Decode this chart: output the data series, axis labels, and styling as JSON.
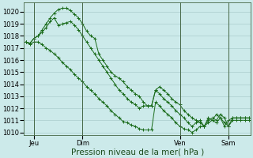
{
  "background_color": "#cceaea",
  "grid_color": "#aacccc",
  "line_color": "#1a6b1a",
  "marker_color": "#1a6b1a",
  "ylim": [
    1009.8,
    1020.8
  ],
  "yticks": [
    1010,
    1011,
    1012,
    1013,
    1014,
    1015,
    1016,
    1017,
    1018,
    1019,
    1020
  ],
  "xlabel": "Pression niveau de la mer( hPa )",
  "xlabel_fontsize": 7.5,
  "tick_fontsize": 6.0,
  "xtick_labels": [
    "Jeu",
    "Dim",
    "Ven",
    "Sam"
  ],
  "xtick_positions": [
    2,
    14,
    38,
    50
  ],
  "vlines": [
    2,
    14,
    38,
    50
  ],
  "n_points": 56,
  "series1": [
    1017.5,
    1017.4,
    1017.8,
    1018.0,
    1018.5,
    1019.0,
    1019.5,
    1019.9,
    1020.2,
    1020.3,
    1020.3,
    1020.1,
    1019.8,
    1019.5,
    1019.0,
    1018.4,
    1018.0,
    1017.8,
    1016.5,
    1016.0,
    1015.5,
    1015.0,
    1014.7,
    1014.5,
    1014.2,
    1013.8,
    1013.5,
    1013.2,
    1013.0,
    1012.5,
    1012.2,
    1012.2,
    1013.5,
    1013.8,
    1013.5,
    1013.2,
    1012.8,
    1012.5,
    1012.3,
    1011.8,
    1011.5,
    1011.2,
    1011.0,
    1010.8,
    1010.5,
    1011.2,
    1011.0,
    1011.5,
    1011.2,
    1010.5,
    1011.0,
    1011.2,
    1011.2,
    1011.2,
    1011.2,
    1011.2
  ],
  "series2": [
    1017.5,
    1017.4,
    1017.8,
    1018.0,
    1018.3,
    1018.7,
    1019.2,
    1019.5,
    1018.9,
    1019.0,
    1019.1,
    1019.2,
    1018.9,
    1018.5,
    1018.0,
    1017.5,
    1017.0,
    1016.5,
    1016.0,
    1015.5,
    1015.0,
    1014.5,
    1014.0,
    1013.5,
    1013.2,
    1012.8,
    1012.5,
    1012.3,
    1012.0,
    1012.2,
    1012.2,
    1012.2,
    1013.5,
    1013.2,
    1012.8,
    1012.5,
    1012.2,
    1011.8,
    1011.5,
    1011.2,
    1010.8,
    1010.5,
    1010.8,
    1011.0,
    1010.5,
    1011.0,
    1011.2,
    1011.0,
    1011.5,
    1011.2,
    1010.5,
    1011.2,
    1011.2,
    1011.2,
    1011.2,
    1011.2
  ],
  "series3": [
    1017.5,
    1017.3,
    1017.5,
    1017.5,
    1017.3,
    1017.0,
    1016.8,
    1016.5,
    1016.2,
    1015.8,
    1015.5,
    1015.2,
    1014.8,
    1014.5,
    1014.2,
    1013.8,
    1013.5,
    1013.2,
    1012.8,
    1012.5,
    1012.2,
    1011.8,
    1011.5,
    1011.2,
    1010.9,
    1010.8,
    1010.6,
    1010.5,
    1010.3,
    1010.2,
    1010.2,
    1010.2,
    1012.5,
    1012.2,
    1011.8,
    1011.5,
    1011.2,
    1010.8,
    1010.5,
    1010.3,
    1010.2,
    1010.0,
    1010.2,
    1010.5,
    1010.5,
    1010.8,
    1011.0,
    1010.8,
    1011.2,
    1010.8,
    1010.5,
    1011.0,
    1011.0,
    1011.0,
    1011.0,
    1011.0
  ]
}
